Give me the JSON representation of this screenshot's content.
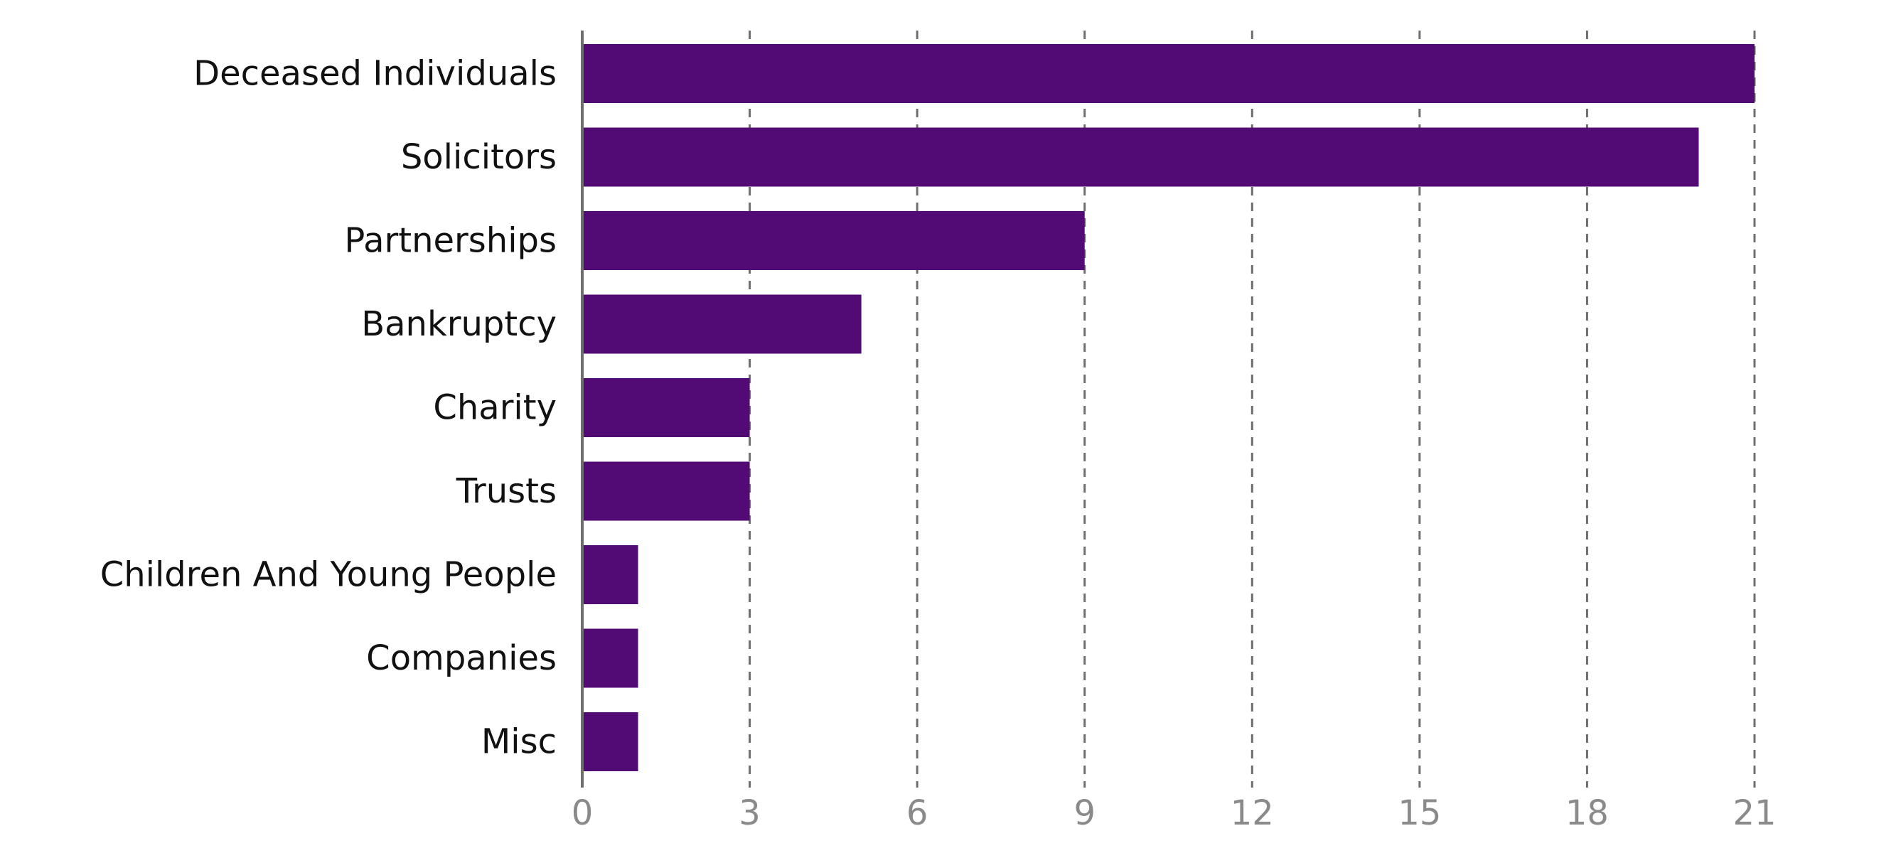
{
  "chart_data": {
    "type": "bar",
    "orientation": "horizontal",
    "title": "",
    "xlabel": "",
    "ylabel": "",
    "categories": [
      "Deceased Individuals",
      "Solicitors",
      "Partnerships",
      "Bankruptcy",
      "Charity",
      "Trusts",
      "Children And Young People",
      "Companies",
      "Misc"
    ],
    "values": [
      21,
      20,
      9,
      5,
      3,
      3,
      1,
      1,
      1
    ],
    "xlim": [
      0,
      21
    ],
    "x_ticks": [
      "0",
      "3",
      "6",
      "9",
      "12",
      "15",
      "18",
      "21"
    ],
    "grid": "vertical dashed",
    "legend": "none",
    "bar_color": "#520a74"
  }
}
